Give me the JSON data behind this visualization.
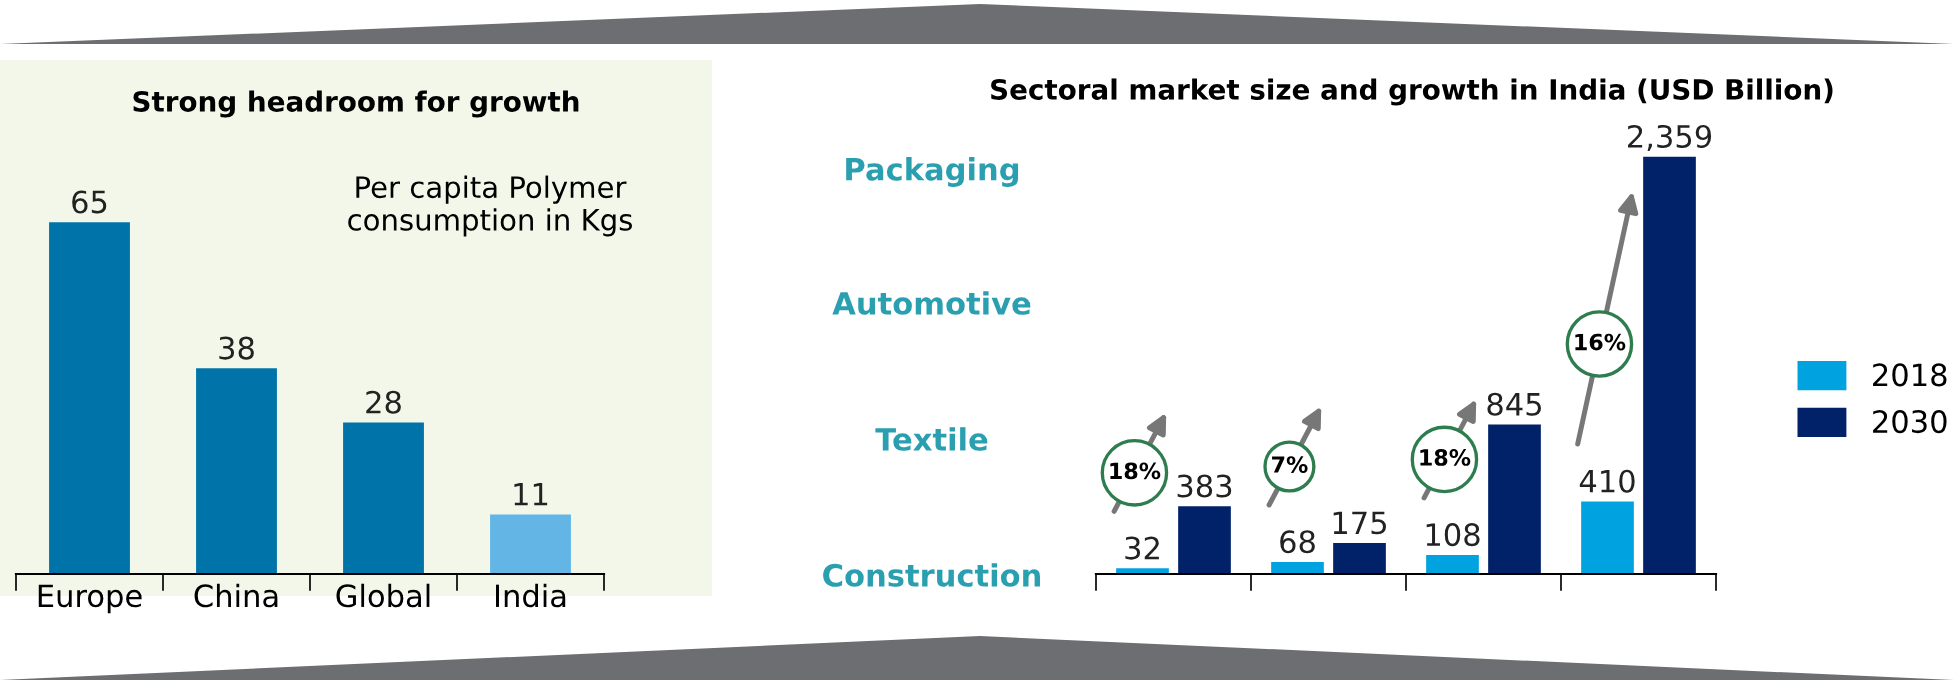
{
  "chart_data": [
    {
      "type": "bar",
      "title": "Strong headroom for growth",
      "categories": [
        "Europe",
        "China",
        "Global",
        "India"
      ],
      "values": [
        65,
        38,
        28,
        11
      ],
      "colors": [
        "#0074a8",
        "#0074a8",
        "#0074a8",
        "#62b5e5"
      ],
      "data_labels": true,
      "annotations": [
        "Per capita Polymer consumption in Kgs"
      ]
    },
    {
      "type": "bar",
      "title": "Sectoral market size and growth in India (USD Billion)",
      "categories": [
        null,
        null,
        null,
        null
      ],
      "series": [
        {
          "name": "2018",
          "color": "#00a3e0",
          "values": [
            32,
            68,
            108,
            410
          ]
        },
        {
          "name": "2030",
          "color": "#012169",
          "values": [
            383,
            175,
            845,
            2359
          ],
          "value_labels": [
            "383",
            "175",
            "845",
            "2,359"
          ]
        }
      ],
      "data_labels": true,
      "legend": "right",
      "annotations": [
        "Packaging",
        "Automotive",
        "Textile",
        "Construction",
        "18%",
        "7%",
        "18%",
        "16%"
      ]
    }
  ]
}
